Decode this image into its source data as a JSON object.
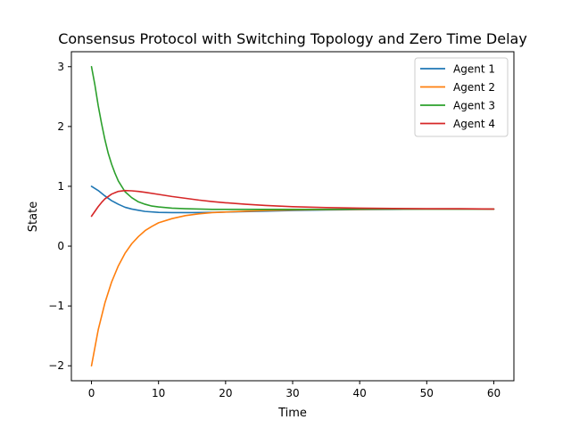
{
  "chart_data": {
    "type": "line",
    "title": "Consensus Protocol with Switching Topology and Zero Time Delay",
    "xlabel": "Time",
    "ylabel": "State",
    "xlim": [
      -3,
      63
    ],
    "ylim": [
      -2.25,
      3.25
    ],
    "xticks": [
      0,
      10,
      20,
      30,
      40,
      50,
      60
    ],
    "xtick_labels": [
      "0",
      "10",
      "20",
      "30",
      "40",
      "50",
      "60"
    ],
    "yticks": [
      -2,
      -1,
      0,
      1,
      2,
      3
    ],
    "ytick_labels": [
      "−2",
      "−1",
      "0",
      "1",
      "2",
      "3"
    ],
    "grid": false,
    "legend": "top-right",
    "series": [
      {
        "name": "Agent 1",
        "color": "#1f77b4",
        "x": [
          0,
          1,
          2,
          3,
          4,
          5,
          6,
          7,
          8,
          10,
          12,
          15,
          18,
          22,
          26,
          30,
          35,
          40,
          45,
          50,
          55,
          60
        ],
        "y": [
          1.0,
          0.93,
          0.84,
          0.76,
          0.7,
          0.65,
          0.62,
          0.6,
          0.58,
          0.565,
          0.56,
          0.56,
          0.565,
          0.575,
          0.585,
          0.595,
          0.605,
          0.61,
          0.615,
          0.62,
          0.62,
          0.62
        ]
      },
      {
        "name": "Agent 2",
        "color": "#ff7f0e",
        "x": [
          0,
          1,
          2,
          3,
          4,
          5,
          6,
          7,
          8,
          9,
          10,
          12,
          14,
          16,
          18,
          20,
          23,
          26,
          30,
          35,
          40,
          45,
          50,
          55,
          60
        ],
        "y": [
          -2.0,
          -1.4,
          -0.95,
          -0.6,
          -0.33,
          -0.12,
          0.04,
          0.16,
          0.26,
          0.33,
          0.39,
          0.46,
          0.51,
          0.54,
          0.56,
          0.57,
          0.585,
          0.595,
          0.605,
          0.61,
          0.615,
          0.62,
          0.62,
          0.62,
          0.62
        ]
      },
      {
        "name": "Agent 3",
        "color": "#2ca02c",
        "x": [
          0,
          0.5,
          1,
          1.5,
          2,
          2.5,
          3,
          3.5,
          4,
          5,
          6,
          7,
          8,
          9,
          10,
          12,
          14,
          16,
          18,
          20,
          25,
          30,
          35,
          40,
          45,
          50,
          55,
          60
        ],
        "y": [
          3.0,
          2.7,
          2.35,
          2.05,
          1.78,
          1.55,
          1.37,
          1.22,
          1.09,
          0.91,
          0.81,
          0.74,
          0.7,
          0.67,
          0.655,
          0.635,
          0.625,
          0.62,
          0.615,
          0.615,
          0.615,
          0.615,
          0.615,
          0.62,
          0.62,
          0.62,
          0.62,
          0.62
        ]
      },
      {
        "name": "Agent 4",
        "color": "#d62728",
        "x": [
          0,
          0.5,
          1,
          1.5,
          2,
          3,
          4,
          5,
          6,
          7,
          8,
          10,
          12,
          14,
          16,
          18,
          20,
          23,
          26,
          30,
          35,
          40,
          45,
          50,
          55,
          60
        ],
        "y": [
          0.5,
          0.58,
          0.66,
          0.73,
          0.79,
          0.87,
          0.915,
          0.93,
          0.925,
          0.915,
          0.9,
          0.865,
          0.83,
          0.8,
          0.77,
          0.745,
          0.725,
          0.7,
          0.68,
          0.66,
          0.645,
          0.635,
          0.63,
          0.625,
          0.625,
          0.62
        ]
      }
    ]
  }
}
